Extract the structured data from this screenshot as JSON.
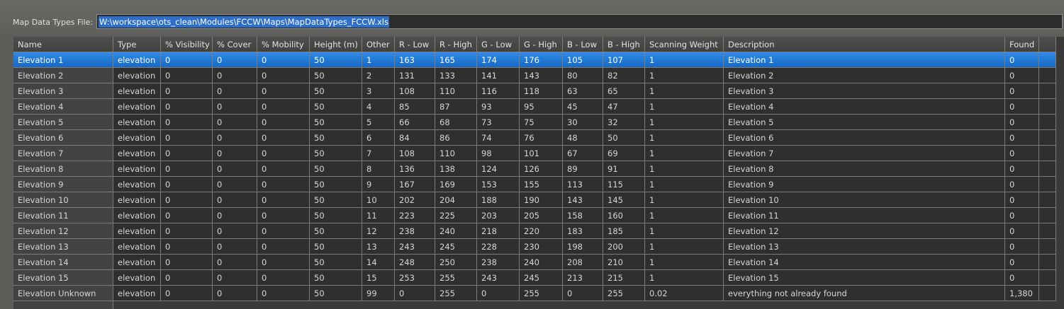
{
  "file_field": {
    "label": "Map Data Types File:",
    "value": "W:\\workspace\\ots_clean\\Modules\\FCCW\\Maps\\MapDataTypes_FCCW.xls"
  },
  "table": {
    "selected_row": 0,
    "columns": [
      "Name",
      "Type",
      "% Visibility",
      "% Cover",
      "% Mobility",
      "Height (m)",
      "Other",
      "R - Low",
      "R - High",
      "G - Low",
      "G - High",
      "B - Low",
      "B - High",
      "Scanning Weight",
      "Description",
      "Found"
    ],
    "rows": [
      [
        "Elevation 1",
        "elevation",
        "0",
        "0",
        "0",
        "50",
        "1",
        "163",
        "165",
        "174",
        "176",
        "105",
        "107",
        "1",
        "Elevation 1",
        "0"
      ],
      [
        "Elevation 2",
        "elevation",
        "0",
        "0",
        "0",
        "50",
        "2",
        "131",
        "133",
        "141",
        "143",
        "80",
        "82",
        "1",
        "Elevation 2",
        "0"
      ],
      [
        "Elevation 3",
        "elevation",
        "0",
        "0",
        "0",
        "50",
        "3",
        "108",
        "110",
        "116",
        "118",
        "63",
        "65",
        "1",
        "Elevation 3",
        "0"
      ],
      [
        "Elevation 4",
        "elevation",
        "0",
        "0",
        "0",
        "50",
        "4",
        "85",
        "87",
        "93",
        "95",
        "45",
        "47",
        "1",
        "Elevation 4",
        "0"
      ],
      [
        "Elevation 5",
        "elevation",
        "0",
        "0",
        "0",
        "50",
        "5",
        "66",
        "68",
        "73",
        "75",
        "30",
        "32",
        "1",
        "Elevation 5",
        "0"
      ],
      [
        "Elevation 6",
        "elevation",
        "0",
        "0",
        "0",
        "50",
        "6",
        "84",
        "86",
        "74",
        "76",
        "48",
        "50",
        "1",
        "Elevation 6",
        "0"
      ],
      [
        "Elevation 7",
        "elevation",
        "0",
        "0",
        "0",
        "50",
        "7",
        "108",
        "110",
        "98",
        "101",
        "67",
        "69",
        "1",
        "Elevation 7",
        "0"
      ],
      [
        "Elevation 8",
        "elevation",
        "0",
        "0",
        "0",
        "50",
        "8",
        "136",
        "138",
        "124",
        "126",
        "89",
        "91",
        "1",
        "Elevation 8",
        "0"
      ],
      [
        "Elevation 9",
        "elevation",
        "0",
        "0",
        "0",
        "50",
        "9",
        "167",
        "169",
        "153",
        "155",
        "113",
        "115",
        "1",
        "Elevation 9",
        "0"
      ],
      [
        "Elevation 10",
        "elevation",
        "0",
        "0",
        "0",
        "50",
        "10",
        "202",
        "204",
        "188",
        "190",
        "143",
        "145",
        "1",
        "Elevation 10",
        "0"
      ],
      [
        "Elevation 11",
        "elevation",
        "0",
        "0",
        "0",
        "50",
        "11",
        "223",
        "225",
        "203",
        "205",
        "158",
        "160",
        "1",
        "Elevation 11",
        "0"
      ],
      [
        "Elevation 12",
        "elevation",
        "0",
        "0",
        "0",
        "50",
        "12",
        "238",
        "240",
        "218",
        "220",
        "183",
        "185",
        "1",
        "Elevation 12",
        "0"
      ],
      [
        "Elevation 13",
        "elevation",
        "0",
        "0",
        "0",
        "50",
        "13",
        "243",
        "245",
        "228",
        "230",
        "198",
        "200",
        "1",
        "Elevation 13",
        "0"
      ],
      [
        "Elevation 14",
        "elevation",
        "0",
        "0",
        "0",
        "50",
        "14",
        "248",
        "250",
        "238",
        "240",
        "208",
        "210",
        "1",
        "Elevation 14",
        "0"
      ],
      [
        "Elevation 15",
        "elevation",
        "0",
        "0",
        "0",
        "50",
        "15",
        "253",
        "255",
        "243",
        "245",
        "213",
        "215",
        "1",
        "Elevation 15",
        "0"
      ],
      [
        "Elevation Unknown",
        "elevation",
        "0",
        "0",
        "0",
        "50",
        "99",
        "0",
        "255",
        "0",
        "255",
        "0",
        "255",
        "0.02",
        "everything not already found",
        "1,380"
      ]
    ]
  }
}
